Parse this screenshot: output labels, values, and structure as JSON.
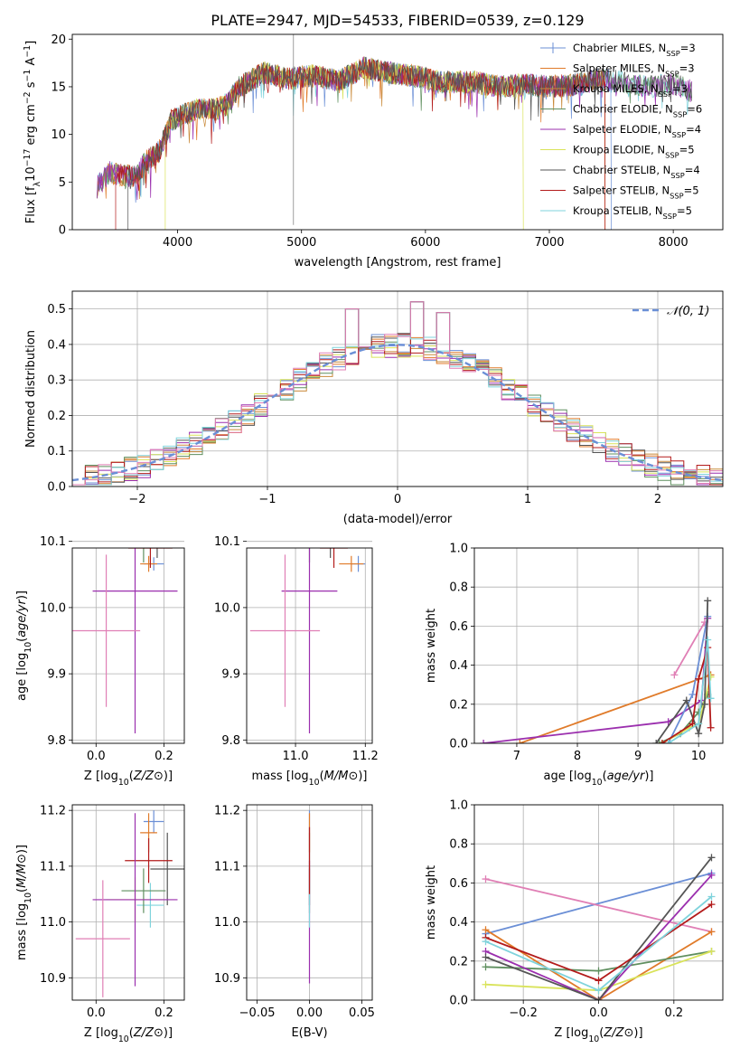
{
  "figure_title": "PLATE=2947, MJD=54533, FIBERID=0539, z=0.129",
  "model_colors": {
    "Chabrier MILES": "#6b8fd6",
    "Salpeter MILES": "#e07b2a",
    "Kroupa MILES": "#c98a3a",
    "Chabrier ELODIE": "#5f8f5f",
    "Salpeter ELODIE": "#9b2fae",
    "Kroupa ELODIE": "#d9e35a",
    "Chabrier STELIB": "#555555",
    "Salpeter STELIB": "#b31b1b",
    "Kroupa STELIB": "#7fd3dc",
    "extra": "#e07fb5"
  },
  "chart_data": [
    {
      "type": "line",
      "title": "PLATE=2947, MJD=54533, FIBERID=0539, z=0.129",
      "xlabel": "wavelength [Angstrom, rest frame]",
      "ylabel": "Flux [f_λ10^-17 erg cm^-2 s^-1 A^-1]",
      "xlim": [
        3150,
        8400
      ],
      "ylim": [
        0,
        20.5
      ],
      "xticks": [
        4000,
        5000,
        6000,
        7000,
        8000
      ],
      "yticks": [
        0,
        5,
        10,
        15,
        20
      ],
      "legend_position": "top-right",
      "legend": [
        {
          "name": "Chabrier MILES",
          "sub": "3",
          "marker": "plus"
        },
        {
          "name": "Salpeter MILES",
          "sub": "3"
        },
        {
          "name": "Kroupa MILES",
          "sub": "3"
        },
        {
          "name": "Chabrier ELODIE",
          "sub": "6"
        },
        {
          "name": "Salpeter ELODIE",
          "sub": "4"
        },
        {
          "name": "Kroupa ELODIE",
          "sub": "5"
        },
        {
          "name": "Chabrier STELIB",
          "sub": "4"
        },
        {
          "name": "Salpeter STELIB",
          "sub": "5"
        },
        {
          "name": "Kroupa STELIB",
          "sub": "5"
        }
      ],
      "legend_label_suffix": ", N",
      "legend_label_subscript": "SSP",
      "continuum": [
        [
          3350,
          4.5
        ],
        [
          3450,
          6.0
        ],
        [
          3650,
          5.5
        ],
        [
          3750,
          7.2
        ],
        [
          3850,
          8.2
        ],
        [
          3950,
          11.5
        ],
        [
          4150,
          12.6
        ],
        [
          4300,
          12.6
        ],
        [
          4400,
          13.2
        ],
        [
          4500,
          15.0
        ],
        [
          4700,
          16.5
        ],
        [
          4900,
          15.8
        ],
        [
          5100,
          16.2
        ],
        [
          5300,
          15.6
        ],
        [
          5500,
          17.0
        ],
        [
          5700,
          16.5
        ],
        [
          5900,
          16.2
        ],
        [
          6100,
          15.5
        ],
        [
          6400,
          15.5
        ],
        [
          6600,
          15.0
        ],
        [
          6800,
          15.2
        ],
        [
          7000,
          15.0
        ],
        [
          7200,
          15.2
        ],
        [
          7400,
          15.8
        ],
        [
          7600,
          15.5
        ],
        [
          7800,
          15.0
        ],
        [
          8000,
          15.3
        ],
        [
          8150,
          14.5
        ]
      ],
      "model_ranges": [
        [
          3350,
          7500
        ],
        [
          3350,
          7450
        ],
        [
          3350,
          7450
        ],
        [
          3350,
          8150
        ],
        [
          3350,
          8150
        ],
        [
          3900,
          6790
        ],
        [
          3600,
          8150
        ],
        [
          3500,
          7450
        ],
        [
          3350,
          8150
        ]
      ],
      "data_spike": {
        "x": 4935,
        "y": 20.5
      },
      "noise_seed": 7
    },
    {
      "type": "histogram",
      "xlabel": "(data-model)/error",
      "ylabel": "Normed distribution",
      "xlim": [
        -2.5,
        2.5
      ],
      "ylim": [
        0,
        0.55
      ],
      "xticks": [
        -2,
        -1,
        0,
        1,
        2
      ],
      "yticks": [
        0.0,
        0.1,
        0.2,
        0.3,
        0.4,
        0.5
      ],
      "legend_position": "top-right",
      "reference_curve": {
        "name": "𝒩(0, 1)",
        "mean": 0,
        "sigma": 1
      },
      "bin_width": 0.1,
      "series_colors": [
        "#6b8fd6",
        "#e07b2a",
        "#c98a3a",
        "#5f8f5f",
        "#9b2fae",
        "#d9e35a",
        "#555555",
        "#b31b1b",
        "#7fd3dc",
        "#e07fb5"
      ],
      "spread": 0.035,
      "highlights": [
        {
          "x": -0.35,
          "y": 0.5
        },
        {
          "x": 0.15,
          "y": 0.52
        },
        {
          "x": 0.35,
          "y": 0.49
        }
      ]
    },
    {
      "type": "scatter",
      "xlabel": "Z [log10(Z/Z⊙)]",
      "ylabel": "age  [log10(age/yr)]",
      "xlim": [
        -0.07,
        0.26
      ],
      "ylim": [
        9.795,
        10.09
      ],
      "xticks": [
        0.0,
        0.2
      ],
      "yticks": [
        9.8,
        9.9,
        10.0,
        10.1
      ],
      "points": [
        {
          "c": "#6b8fd6",
          "x": 0.17,
          "xerr": 0.03,
          "y": 10.066,
          "yerr": 0.01
        },
        {
          "c": "#e07b2a",
          "x": 0.155,
          "xerr": 0.025,
          "y": 10.066,
          "yerr": 0.012
        },
        {
          "c": "#d9e35a",
          "x": 0.125,
          "xerr": 0.095,
          "y": 10.121,
          "yerr": 0.025
        },
        {
          "c": "#7fd3dc",
          "x": 0.145,
          "xerr": 0.07,
          "y": 10.121,
          "yerr": 0.03
        },
        {
          "c": "#5f8f5f",
          "x": 0.14,
          "xerr": 0.06,
          "y": 10.103,
          "yerr": 0.035
        },
        {
          "c": "#555555",
          "x": 0.18,
          "xerr": 0.055,
          "y": 10.11,
          "yerr": 0.035
        },
        {
          "c": "#b31b1b",
          "x": 0.16,
          "xerr": 0.065,
          "y": 10.09,
          "yerr": 0.03
        },
        {
          "c": "#9b2fae",
          "x": 0.115,
          "xerr": 0.125,
          "y": 10.025,
          "yerr": 0.215
        },
        {
          "c": "#e07fb5",
          "x": 0.03,
          "xerr": 0.1,
          "y": 9.965,
          "yerr": 0.115
        }
      ]
    },
    {
      "type": "scatter",
      "xlabel": "mass [log10(M/M⊙)]",
      "xlim": [
        10.86,
        11.22
      ],
      "ylim": [
        9.795,
        10.09
      ],
      "xticks": [
        11.0,
        11.2
      ],
      "yticks": [
        9.8,
        9.9,
        10.0,
        10.1
      ],
      "points": [
        {
          "c": "#6b8fd6",
          "x": 11.18,
          "xerr": 0.02,
          "y": 10.066,
          "yerr": 0.012
        },
        {
          "c": "#e07b2a",
          "x": 11.16,
          "xerr": 0.035,
          "y": 10.066,
          "yerr": 0.012
        },
        {
          "c": "#d9e35a",
          "x": 11.02,
          "xerr": 0.025,
          "y": 10.121,
          "yerr": 0.025
        },
        {
          "c": "#7fd3dc",
          "x": 11.03,
          "xerr": 0.04,
          "y": 10.121,
          "yerr": 0.03
        },
        {
          "c": "#5f8f5f",
          "x": 11.04,
          "xerr": 0.04,
          "y": 10.103,
          "yerr": 0.035
        },
        {
          "c": "#555555",
          "x": 11.1,
          "xerr": 0.05,
          "y": 10.11,
          "yerr": 0.035
        },
        {
          "c": "#b31b1b",
          "x": 11.11,
          "xerr": 0.04,
          "y": 10.09,
          "yerr": 0.03
        },
        {
          "c": "#9b2fae",
          "x": 11.04,
          "xerr": 0.08,
          "y": 10.025,
          "yerr": 0.215
        },
        {
          "c": "#e07fb5",
          "x": 10.97,
          "xerr": 0.1,
          "y": 9.965,
          "yerr": 0.115
        }
      ]
    },
    {
      "type": "line",
      "xlabel": "age  [log10(age/yr)]",
      "ylabel": "mass weight",
      "xlim": [
        6.3,
        10.4
      ],
      "ylim": [
        0,
        1.0
      ],
      "xticks": [
        7,
        8,
        9,
        10
      ],
      "yticks": [
        0.0,
        0.2,
        0.4,
        0.6,
        0.8,
        1.0
      ],
      "series": [
        {
          "c": "#e07fb5",
          "x": [
            9.6,
            10.1
          ],
          "y": [
            0.35,
            0.62
          ]
        },
        {
          "c": "#e07b2a",
          "x": [
            7.05,
            10.2
          ],
          "y": [
            0.0,
            0.35
          ]
        },
        {
          "c": "#9b2fae",
          "x": [
            6.45,
            9.5,
            10.05,
            10.15
          ],
          "y": [
            0.0,
            0.11,
            0.22,
            0.64
          ]
        },
        {
          "c": "#6b8fd6",
          "x": [
            9.5,
            9.9,
            10.15
          ],
          "y": [
            0.0,
            0.25,
            0.65
          ]
        },
        {
          "c": "#5f8f5f",
          "x": [
            9.35,
            9.7,
            10.0,
            10.15
          ],
          "y": [
            0.0,
            0.05,
            0.16,
            0.25
          ]
        },
        {
          "c": "#d9e35a",
          "x": [
            9.4,
            9.85,
            10.0,
            10.2
          ],
          "y": [
            0.0,
            0.08,
            0.1,
            0.34
          ]
        },
        {
          "c": "#555555",
          "x": [
            9.3,
            9.8,
            10.0,
            10.1,
            10.15
          ],
          "y": [
            0.0,
            0.22,
            0.05,
            0.2,
            0.73
          ]
        },
        {
          "c": "#b31b1b",
          "x": [
            9.4,
            9.9,
            10.0,
            10.15,
            10.2
          ],
          "y": [
            0.0,
            0.1,
            0.33,
            0.49,
            0.08
          ]
        },
        {
          "c": "#7fd3dc",
          "x": [
            9.5,
            10.0,
            10.15,
            10.2
          ],
          "y": [
            0.0,
            0.1,
            0.53,
            0.23
          ]
        }
      ]
    },
    {
      "type": "scatter",
      "xlabel": "Z [log10(Z/Z⊙)]",
      "ylabel": "mass [log10(M/M⊙)]",
      "xlim": [
        -0.07,
        0.26
      ],
      "ylim": [
        10.86,
        11.21
      ],
      "xticks": [
        0.0,
        0.2
      ],
      "yticks": [
        10.9,
        11.0,
        11.1,
        11.2
      ],
      "points": [
        {
          "c": "#6b8fd6",
          "x": 0.17,
          "xerr": 0.03,
          "y": 11.18,
          "yerr": 0.02
        },
        {
          "c": "#e07b2a",
          "x": 0.155,
          "xerr": 0.025,
          "y": 11.16,
          "yerr": 0.035
        },
        {
          "c": "#d9e35a",
          "x": 0.115,
          "xerr": 0.085,
          "y": 11.04,
          "yerr": 0.04
        },
        {
          "c": "#7fd3dc",
          "x": 0.16,
          "xerr": 0.04,
          "y": 11.03,
          "yerr": 0.04
        },
        {
          "c": "#5f8f5f",
          "x": 0.14,
          "xerr": 0.065,
          "y": 11.056,
          "yerr": 0.04
        },
        {
          "c": "#555555",
          "x": 0.21,
          "xerr": 0.05,
          "y": 11.095,
          "yerr": 0.065
        },
        {
          "c": "#b31b1b",
          "x": 0.155,
          "xerr": 0.07,
          "y": 11.11,
          "yerr": 0.04
        },
        {
          "c": "#9b2fae",
          "x": 0.115,
          "xerr": 0.125,
          "y": 11.04,
          "yerr": 0.155
        },
        {
          "c": "#e07fb5",
          "x": 0.02,
          "xerr": 0.08,
          "y": 10.97,
          "yerr": 0.105
        }
      ]
    },
    {
      "type": "scatter",
      "xlabel": "E(B-V)",
      "xlim": [
        -0.06,
        0.06
      ],
      "ylim": [
        10.86,
        11.21
      ],
      "xticks": [
        -0.05,
        0.0,
        0.05
      ],
      "yticks": [
        10.9,
        11.0,
        11.1,
        11.2
      ],
      "points": [
        {
          "c": "#6b8fd6",
          "x": 0.0,
          "xerr": 0.0,
          "y": 11.18,
          "yerr": 0.02
        },
        {
          "c": "#e07b2a",
          "x": 0.0,
          "xerr": 0.0,
          "y": 11.16,
          "yerr": 0.035
        },
        {
          "c": "#5f8f5f",
          "x": 0.0,
          "xerr": 0.0,
          "y": 11.056,
          "yerr": 0.04
        },
        {
          "c": "#555555",
          "x": 0.0,
          "xerr": 0.0,
          "y": 11.095,
          "yerr": 0.065
        },
        {
          "c": "#9b2fae",
          "x": 0.0,
          "xerr": 0.0,
          "y": 11.0,
          "yerr": 0.11
        },
        {
          "c": "#7fd3dc",
          "x": 0.0,
          "xerr": 0.0,
          "y": 11.03,
          "yerr": 0.04
        },
        {
          "c": "#b31b1b",
          "x": 0.0,
          "xerr": 0.0,
          "y": 11.11,
          "yerr": 0.06
        }
      ]
    },
    {
      "type": "line",
      "xlabel": "Z [log10(Z/Z⊙)]",
      "ylabel": "mass weight",
      "xlim": [
        -0.33,
        0.33
      ],
      "ylim": [
        0,
        1.0
      ],
      "xticks": [
        -0.2,
        0.0,
        0.2
      ],
      "yticks": [
        0.0,
        0.2,
        0.4,
        0.6,
        0.8,
        1.0
      ],
      "series": [
        {
          "c": "#6b8fd6",
          "x": [
            -0.3,
            0.3
          ],
          "y": [
            0.34,
            0.65
          ]
        },
        {
          "c": "#e07fb5",
          "x": [
            -0.3,
            0.3
          ],
          "y": [
            0.62,
            0.35
          ]
        },
        {
          "c": "#e07b2a",
          "x": [
            -0.3,
            0.0,
            0.3
          ],
          "y": [
            0.36,
            0.0,
            0.35
          ]
        },
        {
          "c": "#5f8f5f",
          "x": [
            -0.3,
            0.0,
            0.3
          ],
          "y": [
            0.17,
            0.15,
            0.25
          ]
        },
        {
          "c": "#d9e35a",
          "x": [
            -0.3,
            0.0,
            0.3
          ],
          "y": [
            0.08,
            0.05,
            0.25
          ]
        },
        {
          "c": "#9b2fae",
          "x": [
            -0.3,
            0.0,
            0.3
          ],
          "y": [
            0.25,
            0.0,
            0.64
          ]
        },
        {
          "c": "#555555",
          "x": [
            -0.3,
            0.0,
            0.3
          ],
          "y": [
            0.22,
            0.0,
            0.73
          ]
        },
        {
          "c": "#b31b1b",
          "x": [
            -0.3,
            0.0,
            0.3
          ],
          "y": [
            0.32,
            0.1,
            0.49
          ]
        },
        {
          "c": "#7fd3dc",
          "x": [
            -0.3,
            0.0,
            0.3
          ],
          "y": [
            0.3,
            0.05,
            0.53
          ]
        }
      ]
    }
  ]
}
